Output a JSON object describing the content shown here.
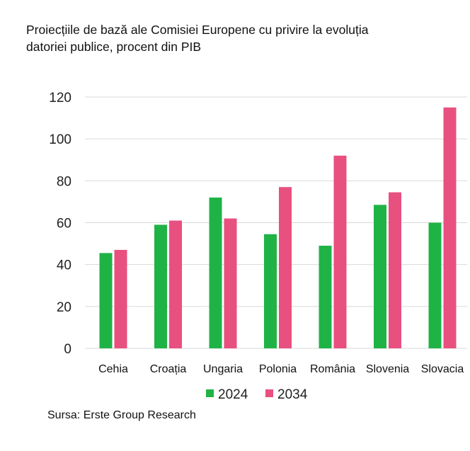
{
  "title_line1": "Proiecțiile de bază ale Comisiei Europene cu privire la evoluția",
  "title_line2": "datoriei publice, procent din PIB",
  "source": "Sursa: Erste Group Research",
  "colors": {
    "series_2024": "#1fb346",
    "series_2034": "#e8507f",
    "grid": "#d9d9d9"
  },
  "chart_data": {
    "type": "bar",
    "title": "Proiecțiile de bază ale Comisiei Europene cu privire la evoluția datoriei publice, procent din PIB",
    "categories": [
      "Cehia",
      "Croația",
      "Ungaria",
      "Polonia",
      "România",
      "Slovenia",
      "Slovacia"
    ],
    "series": [
      {
        "name": "2024",
        "values": [
          45.5,
          59,
          72,
          54.5,
          49,
          68.5,
          60
        ]
      },
      {
        "name": "2034",
        "values": [
          47,
          61,
          62,
          77,
          92,
          74.5,
          115
        ]
      }
    ],
    "yticks": [
      0,
      20,
      40,
      60,
      80,
      100,
      120
    ],
    "ylim": [
      0,
      120
    ],
    "xlabel": "",
    "ylabel": "",
    "grid": true,
    "legend": "bottom-center"
  }
}
